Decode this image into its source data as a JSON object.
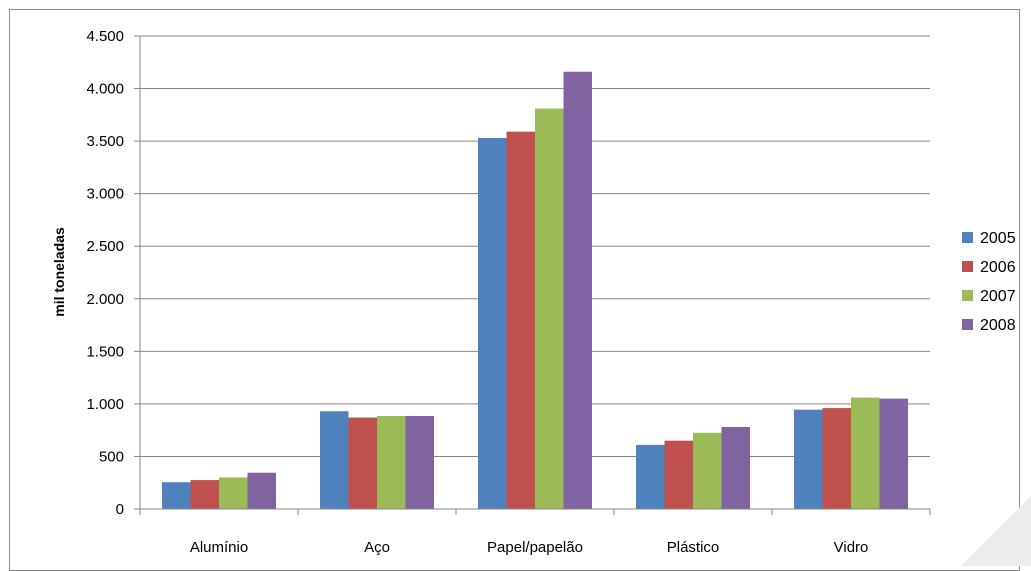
{
  "chart_data": {
    "type": "bar",
    "categories": [
      "Alumínio",
      "Aço",
      "Papel/papelão",
      "Plástico",
      "Vidro"
    ],
    "series": [
      {
        "name": "2005",
        "color": "#4F81BD",
        "values": [
          255,
          930,
          3530,
          610,
          945
        ]
      },
      {
        "name": "2006",
        "color": "#C0504D",
        "values": [
          275,
          870,
          3590,
          650,
          960
        ]
      },
      {
        "name": "2007",
        "color": "#9BBB59",
        "values": [
          300,
          885,
          3810,
          725,
          1060
        ]
      },
      {
        "name": "2008",
        "color": "#8064A2",
        "values": [
          345,
          885,
          4160,
          780,
          1050
        ]
      }
    ],
    "ylabel": "mil toneladas",
    "ylim": [
      0,
      4500
    ],
    "yticks": [
      0,
      500,
      1000,
      1500,
      2000,
      2500,
      3000,
      3500,
      4000,
      4500
    ],
    "ytick_labels": [
      "0",
      "500",
      "1.000",
      "1.500",
      "2.000",
      "2.500",
      "3.000",
      "3.500",
      "4.000",
      "4.500"
    ],
    "grid": true,
    "legend_position": "right"
  }
}
